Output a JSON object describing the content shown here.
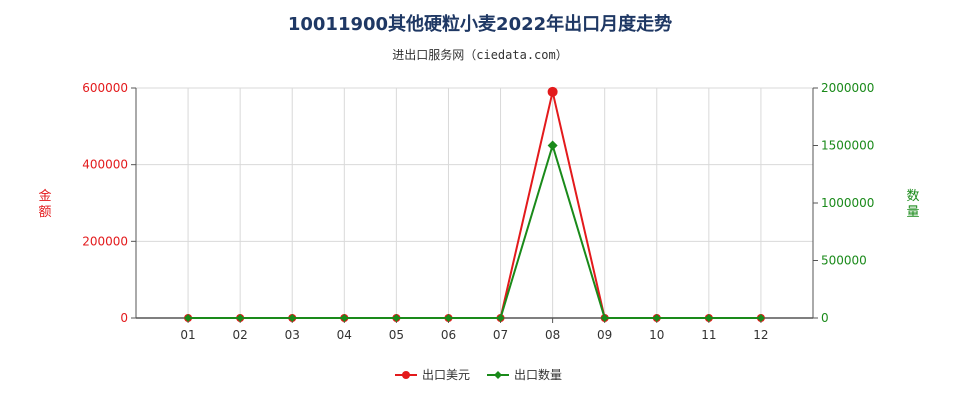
{
  "header": {
    "title": "10011900其他硬粒小麦2022年出口月度走势",
    "subtitle": "进出口服务网（ciedata.com）"
  },
  "chart_data": {
    "type": "line",
    "categories": [
      "01",
      "02",
      "03",
      "04",
      "05",
      "06",
      "07",
      "08",
      "09",
      "10",
      "11",
      "12"
    ],
    "series": [
      {
        "name": "出口美元",
        "axis": "left",
        "color": "#e31a1c",
        "values": [
          0,
          0,
          0,
          0,
          0,
          0,
          0,
          590000,
          0,
          0,
          0,
          0
        ]
      },
      {
        "name": "出口数量",
        "axis": "right",
        "color": "#1a8a1a",
        "values": [
          0,
          0,
          0,
          0,
          0,
          0,
          0,
          1500000,
          0,
          0,
          0,
          0
        ]
      }
    ],
    "y_left": {
      "label": "金额",
      "min": 0,
      "max": 600000,
      "ticks": [
        0,
        200000,
        400000,
        600000
      ],
      "tick_labels": [
        "0",
        "200000",
        "400000",
        "600000"
      ],
      "color": "#e31a1c"
    },
    "y_right": {
      "label": "数量",
      "min": 0,
      "max": 2000000,
      "ticks": [
        0,
        500000,
        1000000,
        1500000,
        2000000
      ],
      "tick_labels": [
        "0",
        "500000",
        "1000000",
        "1500000",
        "2000000"
      ],
      "color": "#1a8a1a"
    },
    "grid": true,
    "legend_position": "bottom"
  }
}
